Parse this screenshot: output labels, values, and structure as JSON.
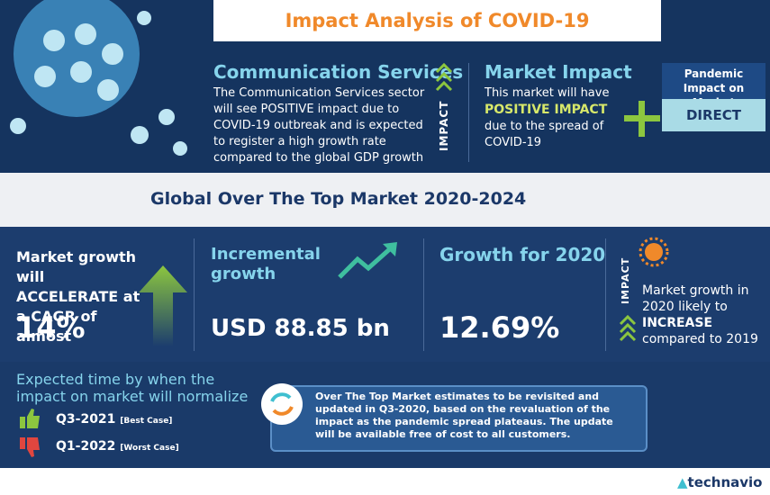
{
  "header": {
    "title": "Impact Analysis of COVID-19"
  },
  "sector": {
    "title": "Communication Services",
    "text": "The Communication Services sector will see POSITIVE impact due to COVID-19 outbreak and is expected to register a high growth rate compared to the global GDP growth",
    "badge": "IMPACT"
  },
  "market_impact": {
    "title": "Market Impact",
    "text_before": "This market will have",
    "highlight": "POSITIVE IMPACT",
    "text_after": "due to the spread of COVID-19"
  },
  "pandemic_impact": {
    "label": "Pandemic Impact on Market",
    "value": "DIRECT"
  },
  "section_title": "Global Over The Top Market 2020-2024",
  "stats": [
    {
      "label": "Market growth will ACCELERATE at a CAGR of almost",
      "value": "14%"
    },
    {
      "label": "Incremental growth",
      "value": "USD 88.85 bn"
    },
    {
      "label": "Growth for 2020",
      "value": "12.69%"
    }
  ],
  "trend": {
    "badge": "IMPACT",
    "text_before": "Market growth in 2020 likely to",
    "highlight": "INCREASE",
    "text_after": "compared to 2019"
  },
  "normalization": {
    "title": "Expected time by when the impact on market will normalize",
    "best": {
      "period": "Q3-2021",
      "label": "[Best Case]"
    },
    "worst": {
      "period": "Q1-2022",
      "label": "[Worst Case]"
    }
  },
  "note": "Over The Top Market estimates to be revisited and updated in Q3-2020, based on the revaluation of the impact as the pandemic spread plateaus. The update will be available free of cost to all customers.",
  "brand": "technavio"
}
